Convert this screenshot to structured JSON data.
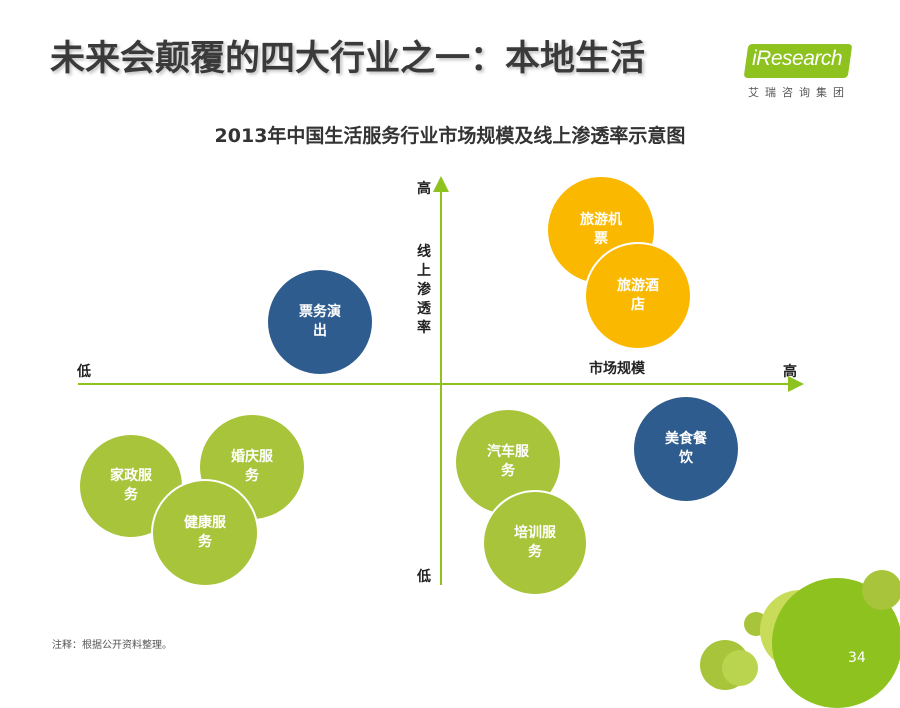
{
  "header": {
    "title": "未来会颠覆的四大行业之一：本地生活",
    "logo_text": "iResearch",
    "logo_sub": "艾瑞咨询集团"
  },
  "chart": {
    "title": "2013年中国生活服务行业市场规模及线上渗透率示意图",
    "y_axis": {
      "label": "线上渗透率",
      "high": "高",
      "low": "低"
    },
    "x_axis": {
      "label": "市场规模",
      "high": "高",
      "low": "低"
    },
    "bubbles": [
      {
        "label": "旅游机票",
        "category": "high-high"
      },
      {
        "label": "旅游酒店",
        "category": "high-high"
      },
      {
        "label": "票务演出",
        "category": "low-high"
      },
      {
        "label": "美食餐饮",
        "category": "high-low"
      },
      {
        "label": "汽车服务",
        "category": "mid-low"
      },
      {
        "label": "培训服务",
        "category": "mid-low"
      },
      {
        "label": "婚庆服务",
        "category": "low-low"
      },
      {
        "label": "家政服务",
        "category": "low-low"
      },
      {
        "label": "健康服务",
        "category": "low-low"
      }
    ]
  },
  "colors": {
    "green": "#a8c43b",
    "blue": "#2f5c8e",
    "orange": "#fbb800",
    "axis": "#8dc21f"
  },
  "footer": {
    "note": "注释：根据公开资料整理。",
    "page_number": "34"
  }
}
